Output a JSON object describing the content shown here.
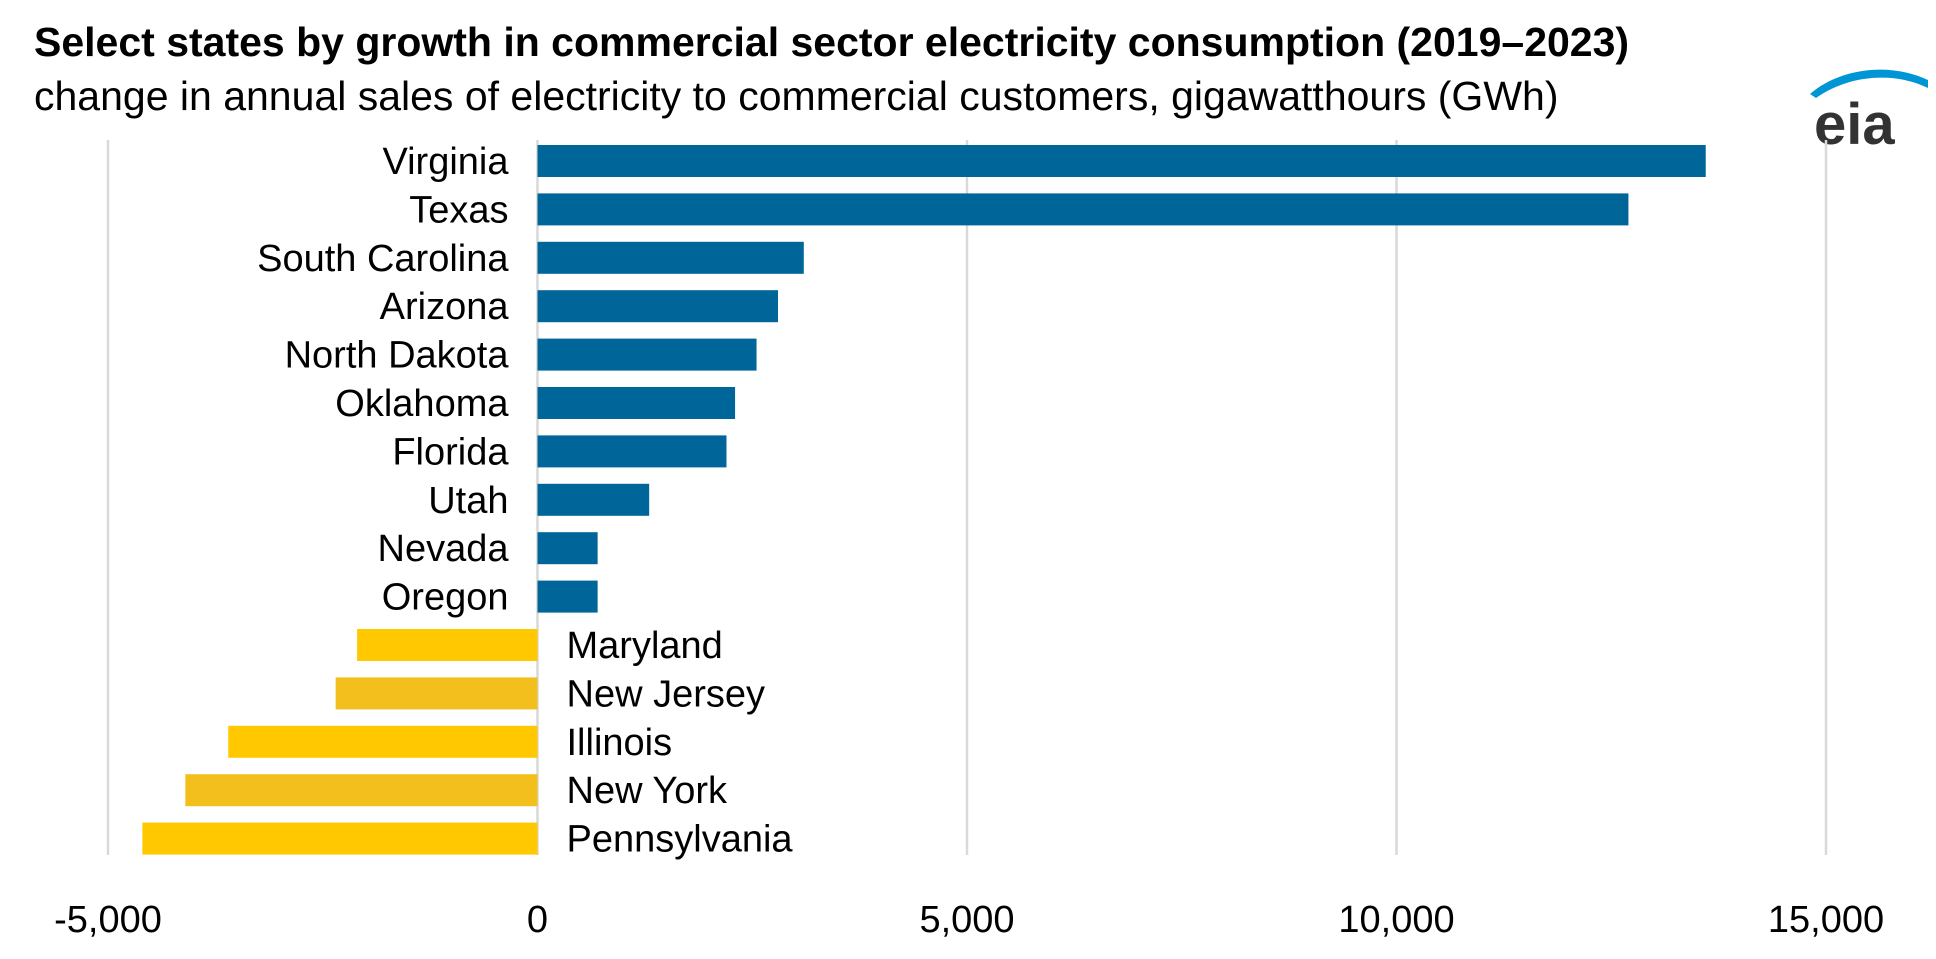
{
  "header": {
    "title": "Select states by growth in commercial sector electricity consumption (2019–2023)",
    "subtitle": "change in annual sales of electricity to commercial customers, gigawatthours (GWh)"
  },
  "logo": {
    "text": "eia",
    "color": "#333333",
    "swoosh_color": "#0096d6"
  },
  "colors": {
    "positive": "#006699",
    "negative": "#f3bf1c",
    "negative_light": "#ffc800",
    "gridline": "#d9d9d9"
  },
  "chart_data": {
    "type": "bar",
    "orientation": "horizontal",
    "title": "Select states by growth in commercial sector electricity consumption (2019–2023)",
    "subtitle": "change in annual sales of electricity to commercial customers, gigawatthours (GWh)",
    "xlabel": "",
    "ylabel": "",
    "xlim": [
      -5000,
      15000
    ],
    "xticks": [
      -5000,
      0,
      5000,
      10000,
      15000
    ],
    "xtick_labels": [
      "-5,000",
      "0",
      "5,000",
      "10,000",
      "15,000"
    ],
    "grid": true,
    "legend": "none",
    "categories": [
      "Virginia",
      "Texas",
      "South Carolina",
      "Arizona",
      "North Dakota",
      "Oklahoma",
      "Florida",
      "Utah",
      "Nevada",
      "Oregon",
      "Maryland",
      "New Jersey",
      "Illinois",
      "New York",
      "Pennsylvania"
    ],
    "values": [
      13600,
      12700,
      3100,
      2800,
      2550,
      2300,
      2200,
      1300,
      700,
      700,
      -2100,
      -2350,
      -3600,
      -4100,
      -4600
    ]
  }
}
